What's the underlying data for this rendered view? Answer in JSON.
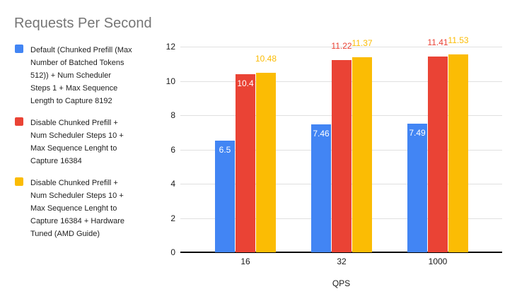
{
  "title": "Requests Per Second",
  "legend": {
    "items": [
      {
        "label": "Default (Chunked Prefill (Max\nNumber of Batched Tokens\n512)) + Num Scheduler\nSteps 1 + Max Sequence\nLength to Capture 8192",
        "color": "#4285f4"
      },
      {
        "label": "Disable Chunked Prefill +\nNum Scheduler Steps 10 +\nMax Sequence Lenght to\nCapture 16384",
        "color": "#ea4335"
      },
      {
        "label": "Disable Chunked Prefill +\nNum Scheduler Steps 10 +\nMax Sequence Lenght to\nCapture 16384 + Hardware\nTuned (AMD Guide)",
        "color": "#fbbc04"
      }
    ]
  },
  "chart_data": {
    "type": "bar",
    "title": "Requests Per Second",
    "categories": [
      "16",
      "32",
      "1000"
    ],
    "xlabel": "QPS",
    "ylabel": "",
    "ylim": [
      0,
      12
    ],
    "yticks": [
      0,
      2,
      4,
      6,
      8,
      10,
      12
    ],
    "grid": true,
    "legend_position": "left",
    "series": [
      {
        "name": "Default (Chunked Prefill (Max Number of Batched Tokens 512)) + Num Scheduler Steps 1 + Max Sequence Length to Capture 8192",
        "color": "#4285f4",
        "values": [
          6.5,
          7.46,
          7.49
        ],
        "label_placement": [
          "inside",
          "inside",
          "inside"
        ]
      },
      {
        "name": "Disable Chunked Prefill + Num Scheduler Steps 10 + Max Sequence Lenght to Capture 16384",
        "color": "#ea4335",
        "values": [
          10.4,
          11.22,
          11.41
        ],
        "label_placement": [
          "inside",
          "above",
          "above"
        ]
      },
      {
        "name": "Disable Chunked Prefill + Num Scheduler Steps 10 + Max Sequence Lenght to Capture 16384 + Hardware Tuned (AMD Guide)",
        "color": "#fbbc04",
        "values": [
          10.48,
          11.37,
          11.53
        ],
        "label_placement": [
          "above",
          "above",
          "above"
        ]
      }
    ]
  },
  "colors": {
    "background": "#ffffff",
    "title_text": "#757575",
    "legend_text": "#212121",
    "axis_text": "#1a1a1a",
    "gridline": "#e0e0e0",
    "axis_line": "#000000",
    "blue": "#4285f4",
    "red": "#ea4335",
    "yellow": "#fbbc04"
  }
}
